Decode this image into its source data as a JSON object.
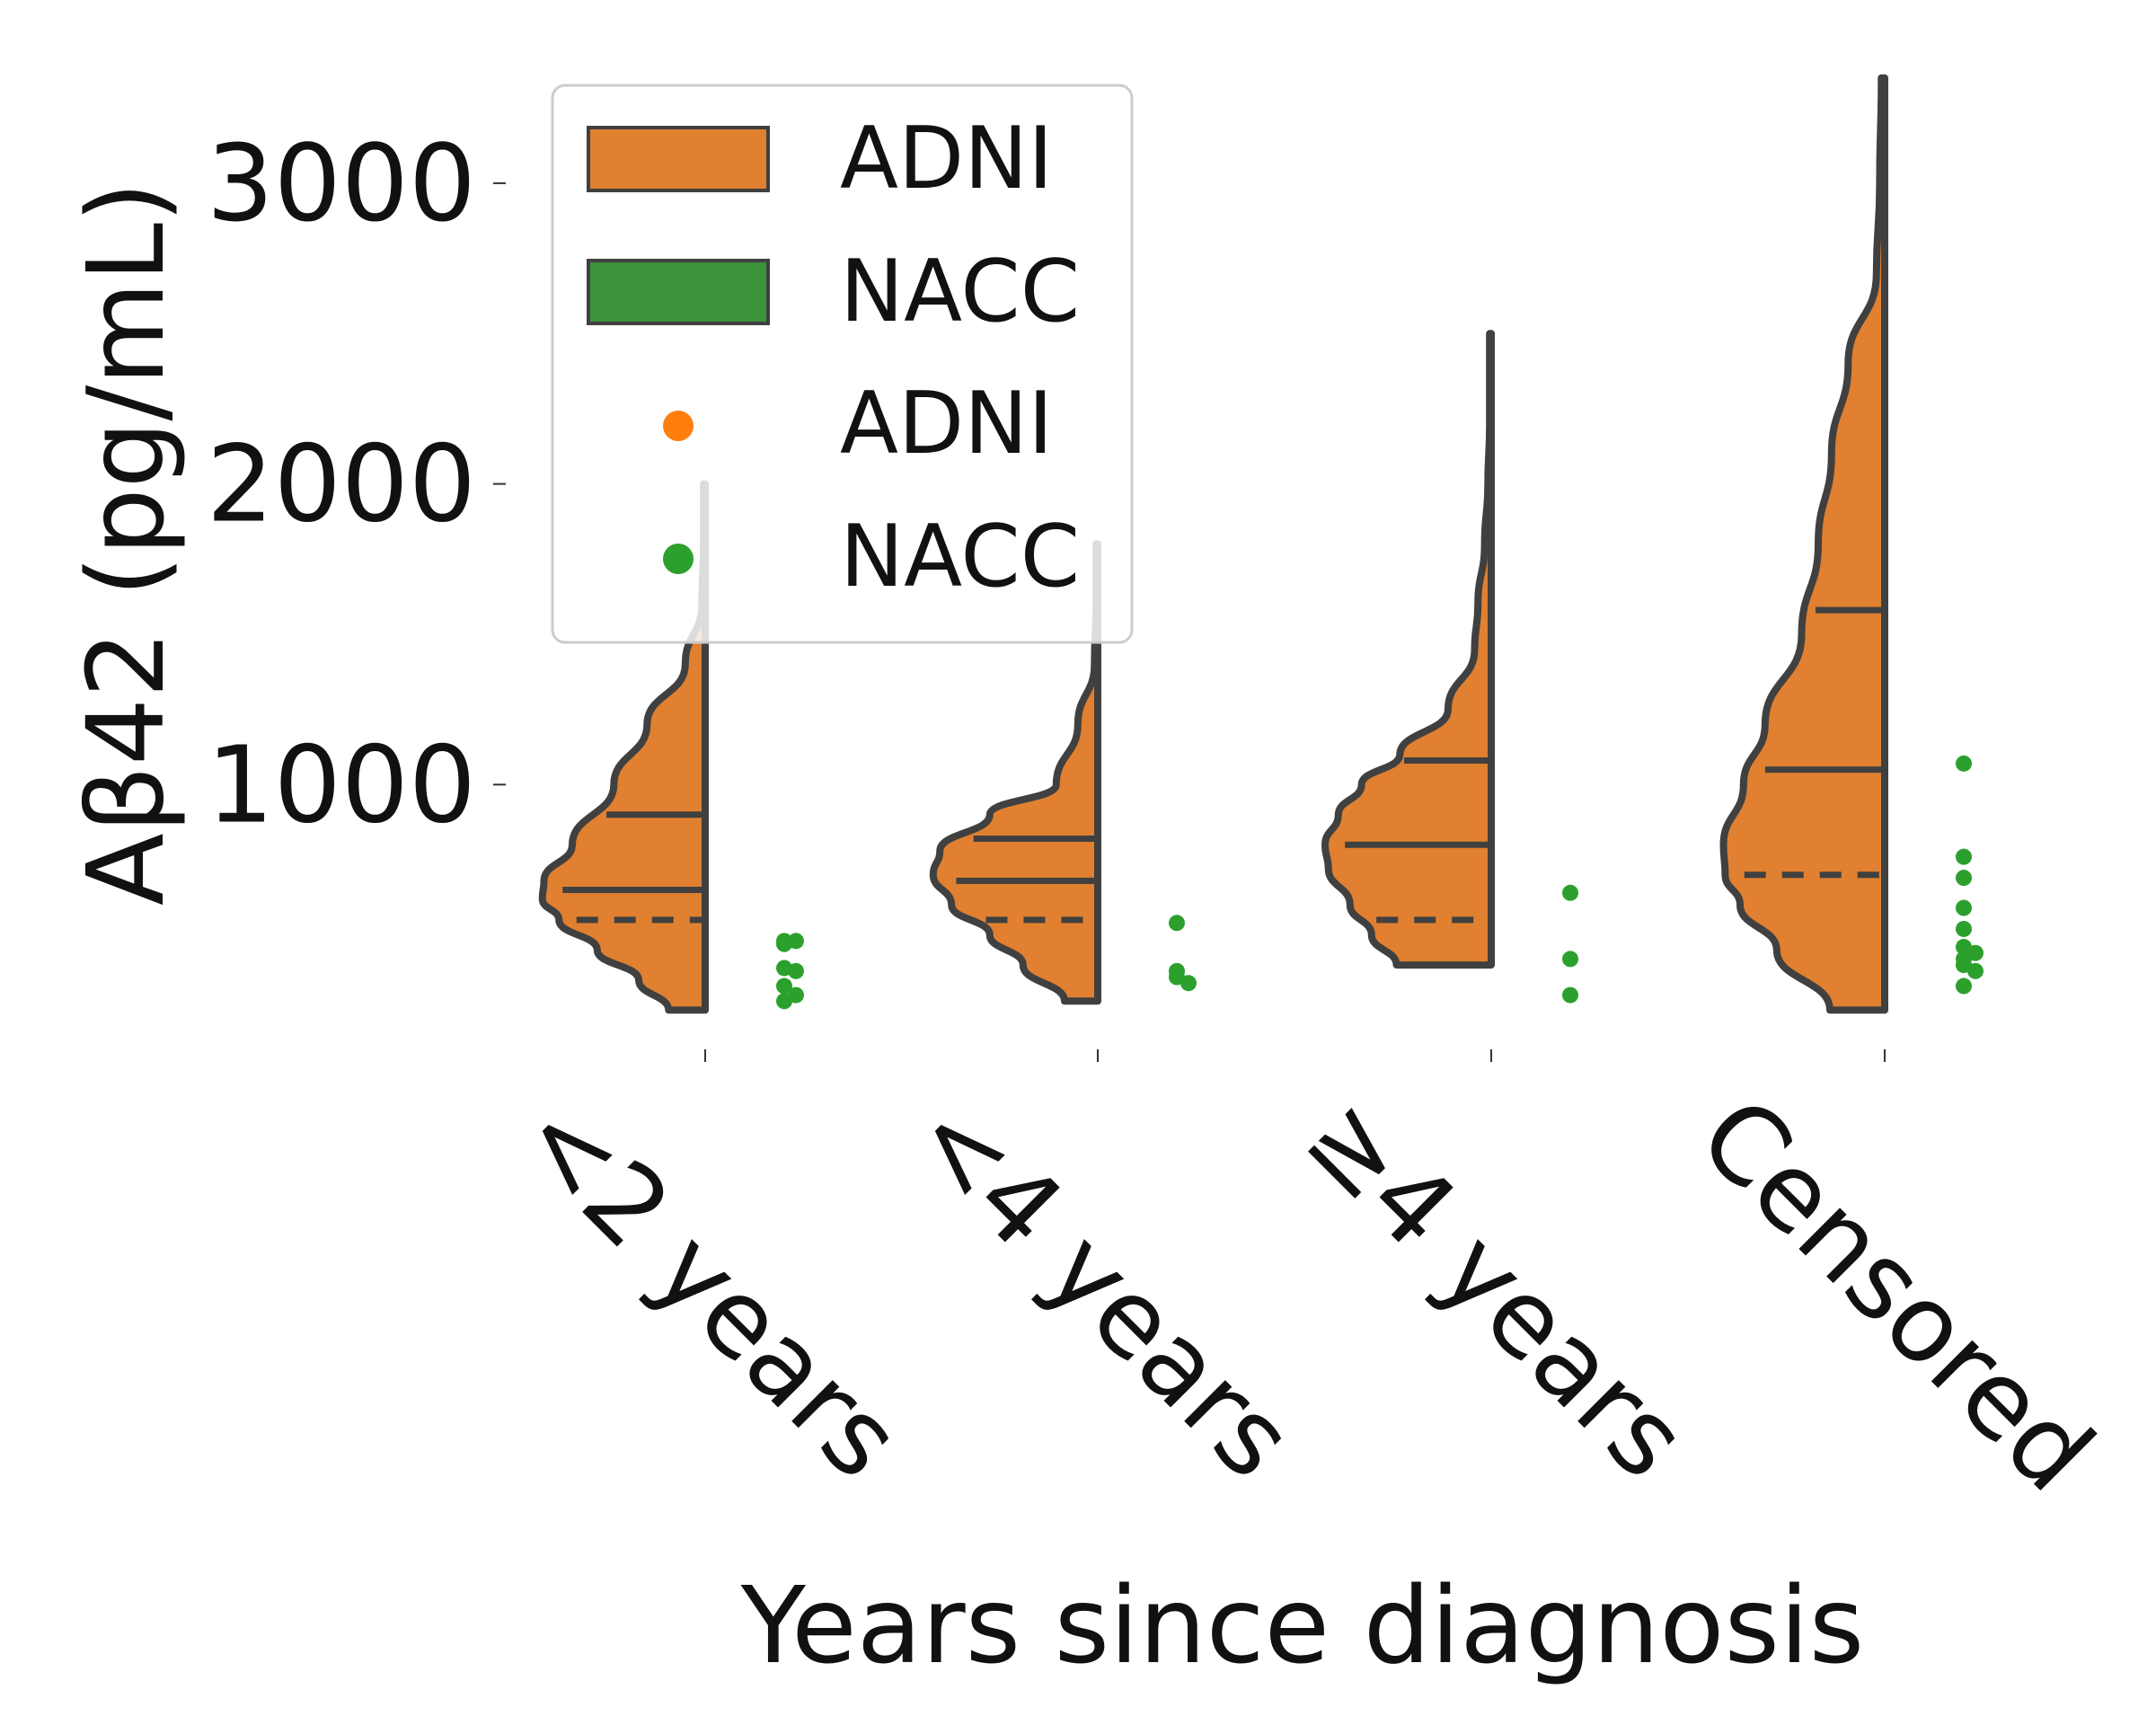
{
  "chart_data": {
    "type": "violin",
    "xlabel": "Years since diagnosis",
    "ylabel": "Aβ42 (pg/mL)",
    "categories": [
      "<2 years",
      "<4 years",
      "≥4 years",
      "Censored"
    ],
    "yticks": [
      1000,
      2000,
      3000
    ],
    "ylim": [
      0,
      3400
    ],
    "legend": {
      "position": "top-left",
      "entries": [
        {
          "label": "ADNI",
          "kind": "violin",
          "color": "#e08030"
        },
        {
          "label": "NACC",
          "kind": "violin",
          "color": "#3a923a"
        },
        {
          "label": "ADNI",
          "kind": "point",
          "color": "#ff7f0e"
        },
        {
          "label": "NACC",
          "kind": "point",
          "color": "#2ca02c"
        }
      ]
    },
    "violin_series": {
      "name": "ADNI",
      "color": "#e08030",
      "edge_color": "#404040",
      "side": "left",
      "groups": [
        {
          "category": "<2 years",
          "min": 250,
          "max": 2000,
          "q1": 550,
          "median": 650,
          "q3": 900,
          "density": [
            [
              250,
              0.22
            ],
            [
              350,
              0.4
            ],
            [
              450,
              0.65
            ],
            [
              550,
              0.88
            ],
            [
              620,
              0.98
            ],
            [
              680,
              0.97
            ],
            [
              800,
              0.8
            ],
            [
              1000,
              0.55
            ],
            [
              1200,
              0.35
            ],
            [
              1400,
              0.12
            ],
            [
              1600,
              0.02
            ],
            [
              1800,
              0.01
            ],
            [
              2000,
              0.01
            ]
          ]
        },
        {
          "category": "<4 years",
          "min": 280,
          "max": 1800,
          "q1": 550,
          "median": 680,
          "q3": 820,
          "density": [
            [
              280,
              0.2
            ],
            [
              400,
              0.45
            ],
            [
              500,
              0.65
            ],
            [
              600,
              0.88
            ],
            [
              700,
              0.99
            ],
            [
              780,
              0.95
            ],
            [
              900,
              0.65
            ],
            [
              1000,
              0.25
            ],
            [
              1200,
              0.12
            ],
            [
              1400,
              0.02
            ],
            [
              1600,
              0.01
            ],
            [
              1800,
              0.01
            ]
          ]
        },
        {
          "category": "≥4 years",
          "min": 400,
          "max": 2500,
          "q1": 550,
          "median": 800,
          "q3": 1080,
          "density": [
            [
              400,
              0.57
            ],
            [
              500,
              0.72
            ],
            [
              600,
              0.85
            ],
            [
              720,
              0.98
            ],
            [
              800,
              1.0
            ],
            [
              900,
              0.92
            ],
            [
              1000,
              0.78
            ],
            [
              1100,
              0.55
            ],
            [
              1250,
              0.26
            ],
            [
              1450,
              0.1
            ],
            [
              1600,
              0.08
            ],
            [
              1800,
              0.04
            ],
            [
              2000,
              0.02
            ],
            [
              2200,
              0.01
            ],
            [
              2500,
              0.01
            ]
          ]
        },
        {
          "category": "Censored",
          "min": 250,
          "max": 3350,
          "q1": 700,
          "median": 1050,
          "q3": 1580,
          "density": [
            [
              250,
              0.33
            ],
            [
              450,
              0.65
            ],
            [
              600,
              0.87
            ],
            [
              700,
              0.96
            ],
            [
              800,
              0.97
            ],
            [
              1000,
              0.85
            ],
            [
              1200,
              0.72
            ],
            [
              1500,
              0.5
            ],
            [
              1800,
              0.4
            ],
            [
              2100,
              0.32
            ],
            [
              2400,
              0.22
            ],
            [
              2700,
              0.05
            ],
            [
              3000,
              0.03
            ],
            [
              3350,
              0.02
            ]
          ]
        }
      ]
    },
    "point_series": {
      "name": "NACC",
      "color": "#2ca02c",
      "groups": [
        {
          "category": "<2 years",
          "values": [
            480,
            480,
            470,
            390,
            380,
            330,
            300,
            280
          ]
        },
        {
          "category": "<4 years",
          "values": [
            540,
            380,
            360,
            340
          ]
        },
        {
          "category": "≥4 years",
          "values": [
            640,
            420,
            300
          ]
        },
        {
          "category": "Censored",
          "values": [
            1070,
            760,
            690,
            590,
            520,
            460,
            440,
            420,
            400,
            380,
            330
          ]
        }
      ]
    }
  }
}
